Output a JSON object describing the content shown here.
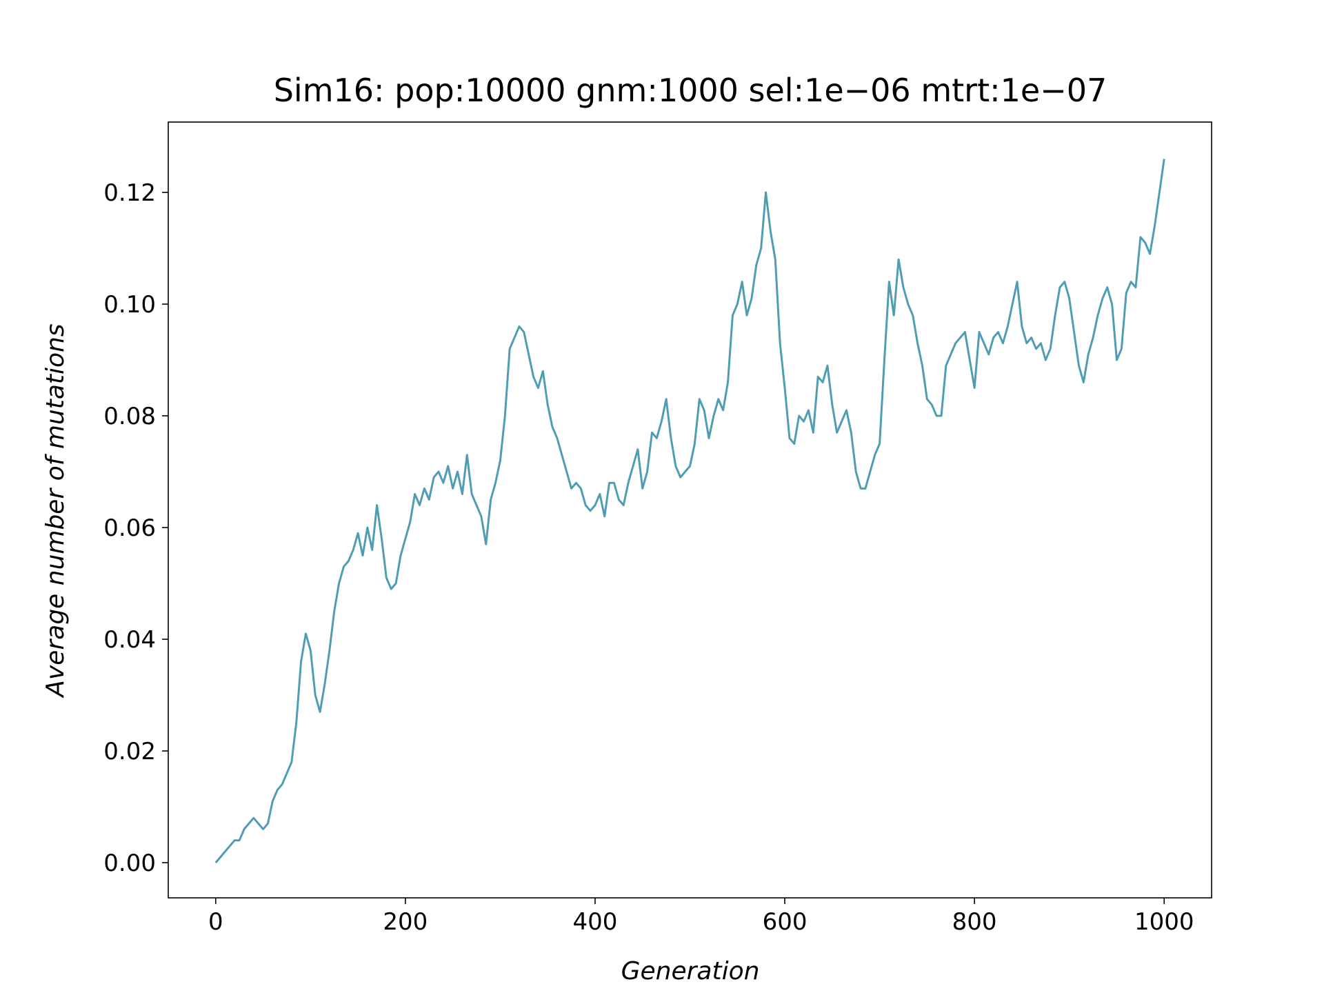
{
  "chart_data": {
    "type": "line",
    "title": "Sim16: pop:10000 gnm:1000 sel:1e−06 mtrt:1e−07",
    "x_label": "Generation",
    "y_label": "Average number of mutations",
    "xlim": [
      -50,
      1050
    ],
    "ylim": [
      -0.0063,
      0.1326
    ],
    "xticks": [
      0,
      200,
      400,
      600,
      800,
      1000
    ],
    "yticks": [
      {
        "value": 0,
        "label": "0.00"
      },
      {
        "value": 0.02,
        "label": "0.02"
      },
      {
        "value": 0.04,
        "label": "0.04"
      },
      {
        "value": 0.06,
        "label": "0.06"
      },
      {
        "value": 0.08,
        "label": "0.08"
      },
      {
        "value": 0.1,
        "label": "0.10"
      },
      {
        "value": 0.12,
        "label": "0.12"
      }
    ],
    "x": [
      0,
      5,
      10,
      15,
      20,
      25,
      30,
      35,
      40,
      45,
      50,
      55,
      60,
      65,
      70,
      75,
      80,
      85,
      90,
      95,
      100,
      105,
      110,
      115,
      120,
      125,
      130,
      135,
      140,
      145,
      150,
      155,
      160,
      165,
      170,
      175,
      180,
      185,
      190,
      195,
      200,
      205,
      210,
      215,
      220,
      225,
      230,
      235,
      240,
      245,
      250,
      255,
      260,
      265,
      270,
      275,
      280,
      285,
      290,
      295,
      300,
      305,
      310,
      315,
      320,
      325,
      330,
      335,
      340,
      345,
      350,
      355,
      360,
      365,
      370,
      375,
      380,
      385,
      390,
      395,
      400,
      405,
      410,
      415,
      420,
      425,
      430,
      435,
      440,
      445,
      450,
      455,
      460,
      465,
      470,
      475,
      480,
      485,
      490,
      495,
      500,
      505,
      510,
      515,
      520,
      525,
      530,
      535,
      540,
      545,
      550,
      555,
      560,
      565,
      570,
      575,
      580,
      585,
      590,
      595,
      600,
      605,
      610,
      615,
      620,
      625,
      630,
      635,
      640,
      645,
      650,
      655,
      660,
      665,
      670,
      675,
      680,
      685,
      690,
      695,
      700,
      705,
      710,
      715,
      720,
      725,
      730,
      735,
      740,
      745,
      750,
      755,
      760,
      765,
      770,
      775,
      780,
      785,
      790,
      795,
      800,
      805,
      810,
      815,
      820,
      825,
      830,
      835,
      840,
      845,
      850,
      855,
      860,
      865,
      870,
      875,
      880,
      885,
      890,
      895,
      900,
      905,
      910,
      915,
      920,
      925,
      930,
      935,
      940,
      945,
      950,
      955,
      960,
      965,
      970,
      975,
      980,
      985,
      990,
      995,
      1000
    ],
    "series": [
      {
        "color": "#4f9db2",
        "values": [
          0.0,
          0.001,
          0.002,
          0.003,
          0.004,
          0.004,
          0.006,
          0.007,
          0.008,
          0.007,
          0.006,
          0.007,
          0.011,
          0.013,
          0.014,
          0.016,
          0.018,
          0.025,
          0.036,
          0.041,
          0.038,
          0.03,
          0.027,
          0.032,
          0.038,
          0.045,
          0.05,
          0.053,
          0.054,
          0.056,
          0.059,
          0.055,
          0.06,
          0.056,
          0.064,
          0.058,
          0.051,
          0.049,
          0.05,
          0.055,
          0.058,
          0.061,
          0.066,
          0.064,
          0.067,
          0.065,
          0.069,
          0.07,
          0.068,
          0.071,
          0.067,
          0.07,
          0.066,
          0.073,
          0.066,
          0.064,
          0.062,
          0.057,
          0.065,
          0.068,
          0.072,
          0.08,
          0.092,
          0.094,
          0.096,
          0.095,
          0.091,
          0.087,
          0.085,
          0.088,
          0.082,
          0.078,
          0.076,
          0.073,
          0.07,
          0.067,
          0.068,
          0.067,
          0.064,
          0.063,
          0.064,
          0.066,
          0.062,
          0.068,
          0.068,
          0.065,
          0.064,
          0.068,
          0.071,
          0.074,
          0.067,
          0.07,
          0.077,
          0.076,
          0.079,
          0.083,
          0.076,
          0.071,
          0.069,
          0.07,
          0.071,
          0.075,
          0.083,
          0.081,
          0.076,
          0.08,
          0.083,
          0.081,
          0.086,
          0.098,
          0.1,
          0.104,
          0.098,
          0.101,
          0.107,
          0.11,
          0.12,
          0.113,
          0.108,
          0.093,
          0.085,
          0.076,
          0.075,
          0.08,
          0.079,
          0.081,
          0.077,
          0.087,
          0.086,
          0.089,
          0.082,
          0.077,
          0.079,
          0.081,
          0.077,
          0.07,
          0.067,
          0.067,
          0.07,
          0.073,
          0.075,
          0.09,
          0.104,
          0.098,
          0.108,
          0.103,
          0.1,
          0.098,
          0.093,
          0.089,
          0.083,
          0.082,
          0.08,
          0.08,
          0.089,
          0.091,
          0.093,
          0.094,
          0.095,
          0.09,
          0.085,
          0.095,
          0.093,
          0.091,
          0.094,
          0.095,
          0.093,
          0.096,
          0.1,
          0.104,
          0.096,
          0.093,
          0.094,
          0.092,
          0.093,
          0.09,
          0.092,
          0.098,
          0.103,
          0.104,
          0.101,
          0.095,
          0.089,
          0.086,
          0.091,
          0.094,
          0.098,
          0.101,
          0.103,
          0.1,
          0.09,
          0.092,
          0.102,
          0.104,
          0.103,
          0.112,
          0.111,
          0.109,
          0.114,
          0.12,
          0.126
        ]
      }
    ]
  }
}
